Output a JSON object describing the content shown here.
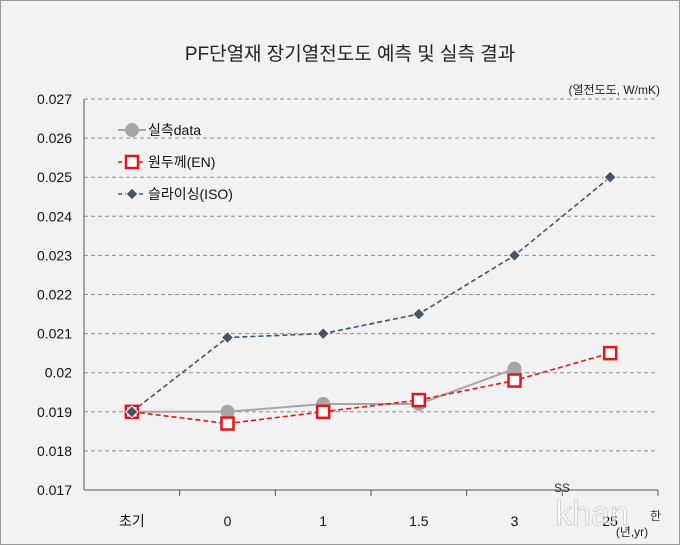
{
  "chart_data": {
    "type": "line",
    "title": "PF단열재 장기열전도도 예측 및 실측 결과",
    "unit_label": "(열전도도, W/mK)",
    "x_unit_label": "(년,yr)",
    "categories": [
      "초기",
      "0",
      "1",
      "1.5",
      "3",
      "25"
    ],
    "ylim": [
      0.017,
      0.027
    ],
    "yticks": [
      "0.017",
      "0.018",
      "0.019",
      "0.02",
      "0.021",
      "0.022",
      "0.023",
      "0.024",
      "0.025",
      "0.026",
      "0.027"
    ],
    "grid": true,
    "legend_position": "top-left",
    "series": [
      {
        "name": "실측data",
        "color": "#a6a6a6",
        "marker": "circle",
        "dash": false,
        "values": [
          0.019,
          0.019,
          0.0192,
          0.0192,
          0.0201,
          null
        ]
      },
      {
        "name": "원두께(EN)",
        "color": "#e8141b",
        "marker": "square",
        "dash": true,
        "values": [
          0.019,
          0.0187,
          0.019,
          0.0193,
          0.0198,
          0.0205
        ]
      },
      {
        "name": "슬라이싱(ISO)",
        "color": "#44546a",
        "marker": "diamond",
        "dash": true,
        "values": [
          0.019,
          0.0209,
          0.021,
          0.0215,
          0.023,
          0.025
        ]
      }
    ]
  },
  "watermark": {
    "mark": "SS",
    "logo": "khan",
    "suffix": "한"
  }
}
